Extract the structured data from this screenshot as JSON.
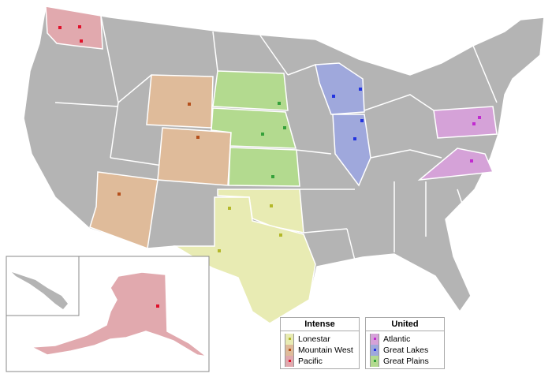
{
  "colors": {
    "land": "#b4b4b4",
    "border": "#ffffff",
    "Lonestar": {
      "fill": "#e8ebb3",
      "dot": "#b4b829"
    },
    "Mountain West": {
      "fill": "#dfbb9a",
      "dot": "#b5501c"
    },
    "Pacific": {
      "fill": "#e1a9ae",
      "dot": "#e0102a"
    },
    "Atlantic": {
      "fill": "#d5a2d8",
      "dot": "#c12ad0"
    },
    "Great Lakes": {
      "fill": "#9fa8dc",
      "dot": "#2233e0"
    },
    "Great Plains": {
      "fill": "#b3da8f",
      "dot": "#35a13a"
    }
  },
  "legend": [
    {
      "title": "Intense",
      "items": [
        "Lonestar",
        "Mountain West",
        "Pacific"
      ]
    },
    {
      "title": "United",
      "items": [
        "Atlantic",
        "Great Lakes",
        "Great Plains"
      ]
    }
  ]
}
